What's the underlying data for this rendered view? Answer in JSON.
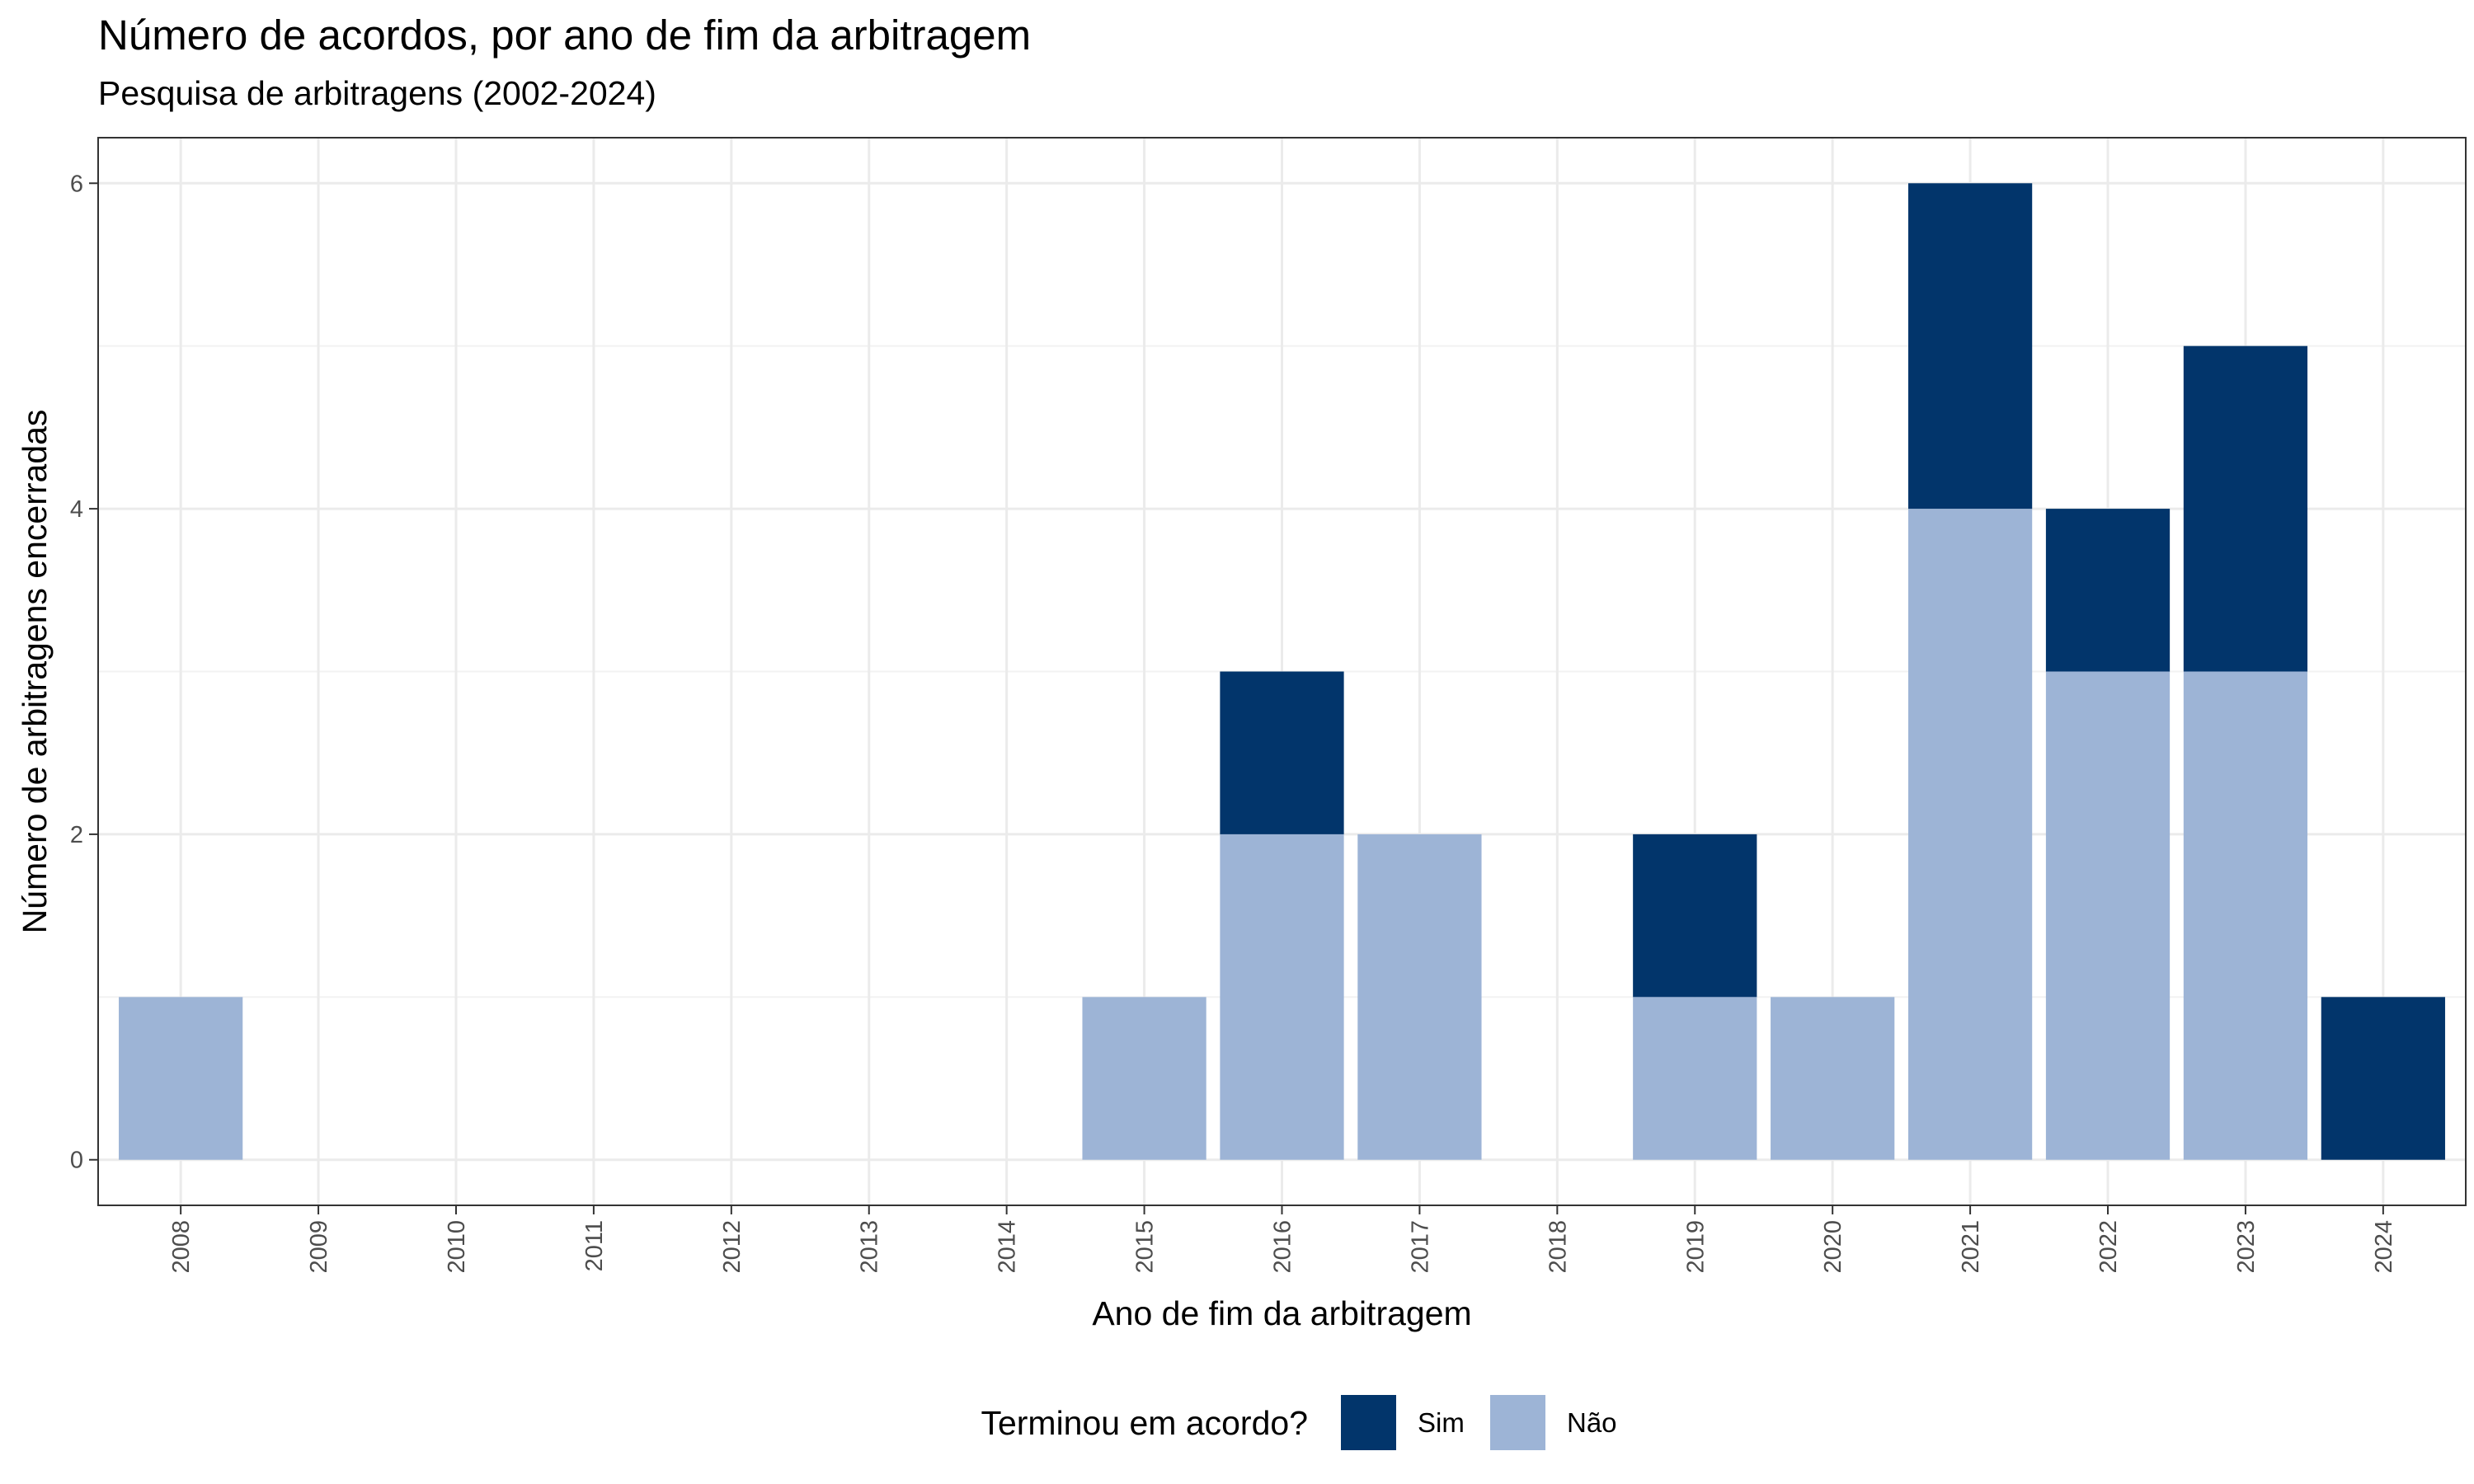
{
  "chart_data": {
    "type": "bar",
    "stacked": true,
    "title": "Número de acordos, por ano de fim da arbitragem",
    "subtitle": "Pesquisa de arbitragens (2002-2024)",
    "xlabel": "Ano de fim da arbitragem",
    "ylabel": "Número de arbitragens encerradas",
    "categories": [
      "2008",
      "2009",
      "2010",
      "2011",
      "2012",
      "2013",
      "2014",
      "2015",
      "2016",
      "2017",
      "2018",
      "2019",
      "2020",
      "2021",
      "2022",
      "2023",
      "2024"
    ],
    "series": [
      {
        "name": "Sim",
        "color": "#02356b",
        "values": [
          0,
          0,
          0,
          0,
          0,
          0,
          0,
          0,
          1,
          0,
          0,
          1,
          0,
          2,
          1,
          2,
          1
        ]
      },
      {
        "name": "Não",
        "color": "#9db4d6",
        "values": [
          1,
          0,
          0,
          0,
          0,
          0,
          0,
          1,
          2,
          2,
          0,
          1,
          1,
          4,
          3,
          3,
          0
        ]
      }
    ],
    "ylim": [
      -0.28,
      6.28
    ],
    "yticks": [
      0,
      2,
      4,
      6
    ],
    "grid": true,
    "legend": {
      "title": "Terminou em acordo?",
      "position": "bottom"
    }
  }
}
